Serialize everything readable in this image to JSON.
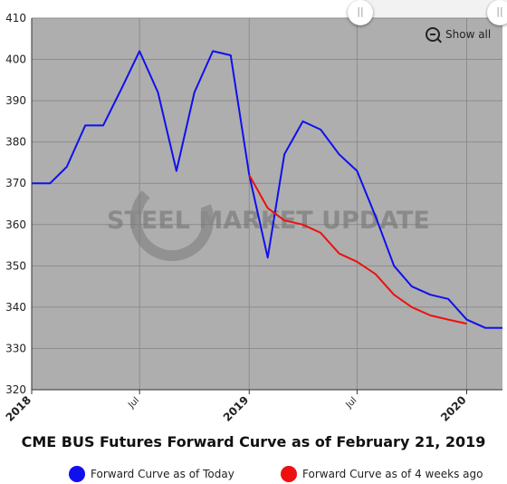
{
  "colors": {
    "plot_bg": "#aeaeae",
    "grid": "#8c8c8c",
    "today": "#1010ee",
    "four_weeks": "#ee1010"
  },
  "chart_data": {
    "type": "line",
    "title": "CME BUS Futures Forward Curve as of February 21, 2019",
    "ylim": [
      320,
      410
    ],
    "yticks": [
      320,
      330,
      340,
      350,
      360,
      370,
      380,
      390,
      400,
      410
    ],
    "xlim": [
      "2018-01-01",
      "2020-03-01"
    ],
    "xticks": [
      {
        "date": "2018-01-01",
        "label": "2018",
        "bold": true
      },
      {
        "date": "2018-07-01",
        "label": "Jul",
        "bold": false
      },
      {
        "date": "2019-01-01",
        "label": "2019",
        "bold": true
      },
      {
        "date": "2019-07-01",
        "label": "Jul",
        "bold": false
      },
      {
        "date": "2020-01-01",
        "label": "2020",
        "bold": true
      }
    ],
    "grid": true,
    "legend_position": "bottom",
    "series": [
      {
        "name": "Forward Curve as of Today",
        "color": "#1010ee",
        "points": [
          [
            "2018-01-01",
            370
          ],
          [
            "2018-02-01",
            370
          ],
          [
            "2018-03-01",
            374
          ],
          [
            "2018-04-01",
            384
          ],
          [
            "2018-05-01",
            384
          ],
          [
            "2018-06-01",
            393
          ],
          [
            "2018-07-01",
            402
          ],
          [
            "2018-08-01",
            392
          ],
          [
            "2018-09-01",
            373
          ],
          [
            "2018-10-01",
            392
          ],
          [
            "2018-11-01",
            402
          ],
          [
            "2018-12-01",
            401
          ],
          [
            "2019-01-01",
            372
          ],
          [
            "2019-02-01",
            352
          ],
          [
            "2019-03-01",
            377
          ],
          [
            "2019-04-01",
            385
          ],
          [
            "2019-05-01",
            383
          ],
          [
            "2019-06-01",
            377
          ],
          [
            "2019-07-01",
            373
          ],
          [
            "2019-08-01",
            362
          ],
          [
            "2019-09-01",
            350
          ],
          [
            "2019-10-01",
            345
          ],
          [
            "2019-11-01",
            343
          ],
          [
            "2019-12-01",
            342
          ],
          [
            "2020-01-01",
            337
          ],
          [
            "2020-02-01",
            335
          ],
          [
            "2020-03-01",
            335
          ]
        ]
      },
      {
        "name": "Forward Curve as of 4 weeks ago",
        "color": "#ee1010",
        "points": [
          [
            "2019-01-01",
            372
          ],
          [
            "2019-02-01",
            364
          ],
          [
            "2019-03-01",
            361
          ],
          [
            "2019-04-01",
            360
          ],
          [
            "2019-05-01",
            358
          ],
          [
            "2019-06-01",
            353
          ],
          [
            "2019-07-01",
            351
          ],
          [
            "2019-08-01",
            348
          ],
          [
            "2019-09-01",
            343
          ],
          [
            "2019-10-01",
            340
          ],
          [
            "2019-11-01",
            338
          ],
          [
            "2019-12-01",
            337
          ],
          [
            "2020-01-01",
            336
          ]
        ]
      }
    ]
  },
  "controls": {
    "show_all": "Show all",
    "handle_label": "||"
  },
  "watermark": "STEEL MARKET UPDATE"
}
